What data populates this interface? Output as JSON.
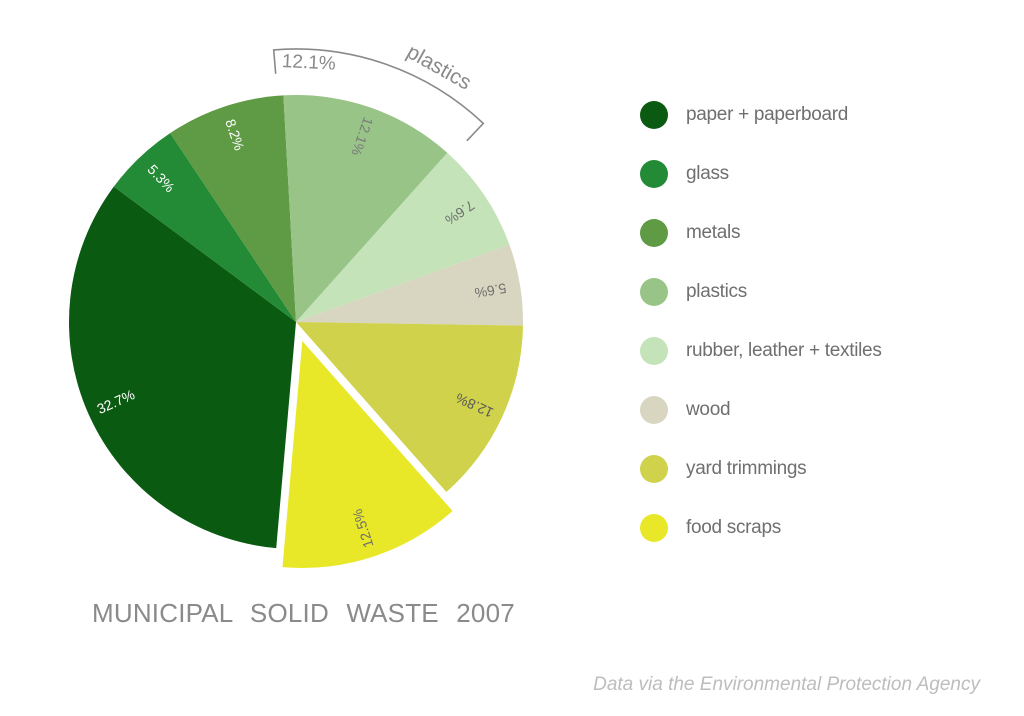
{
  "chart_data": {
    "type": "pie",
    "title": "MUNICIPAL SOLID WASTE 2007",
    "source_note": "Data via the Environmental Protection Agency",
    "exploded_slice": "food scraps",
    "slices": [
      {
        "name": "paper + paperboard",
        "value": 32.7,
        "label": "32.7%",
        "color": "#0b5a12",
        "label_color": "#ffffff"
      },
      {
        "name": "glass",
        "value": 5.3,
        "label": "5.3%",
        "color": "#238a36",
        "label_color": "#ffffff"
      },
      {
        "name": "metals",
        "value": 8.2,
        "label": "8.2%",
        "color": "#5f9a45",
        "label_color": "#ffffff"
      },
      {
        "name": "plastics",
        "value": 12.1,
        "label": "12.1%",
        "color": "#98c488",
        "label_color": "#7a7a7a"
      },
      {
        "name": "rubber, leather + textiles",
        "value": 7.6,
        "label": "7.6%",
        "color": "#c4e3b9",
        "label_color": "#6f6f6f"
      },
      {
        "name": "wood",
        "value": 5.6,
        "label": "5.6%",
        "color": "#d8d6c0",
        "label_color": "#6f6f6f"
      },
      {
        "name": "yard trimmings",
        "value": 12.8,
        "label": "12.8%",
        "color": "#cfd24a",
        "label_color": "#5a5a5a"
      },
      {
        "name": "food scraps",
        "value": 12.5,
        "label": "12.5%",
        "color": "#e8e829",
        "label_color": "#6f6f6f"
      }
    ],
    "callout": {
      "slice": "plastics",
      "text": "plastics",
      "value_label": "12.1%"
    },
    "legend_position": "right"
  }
}
